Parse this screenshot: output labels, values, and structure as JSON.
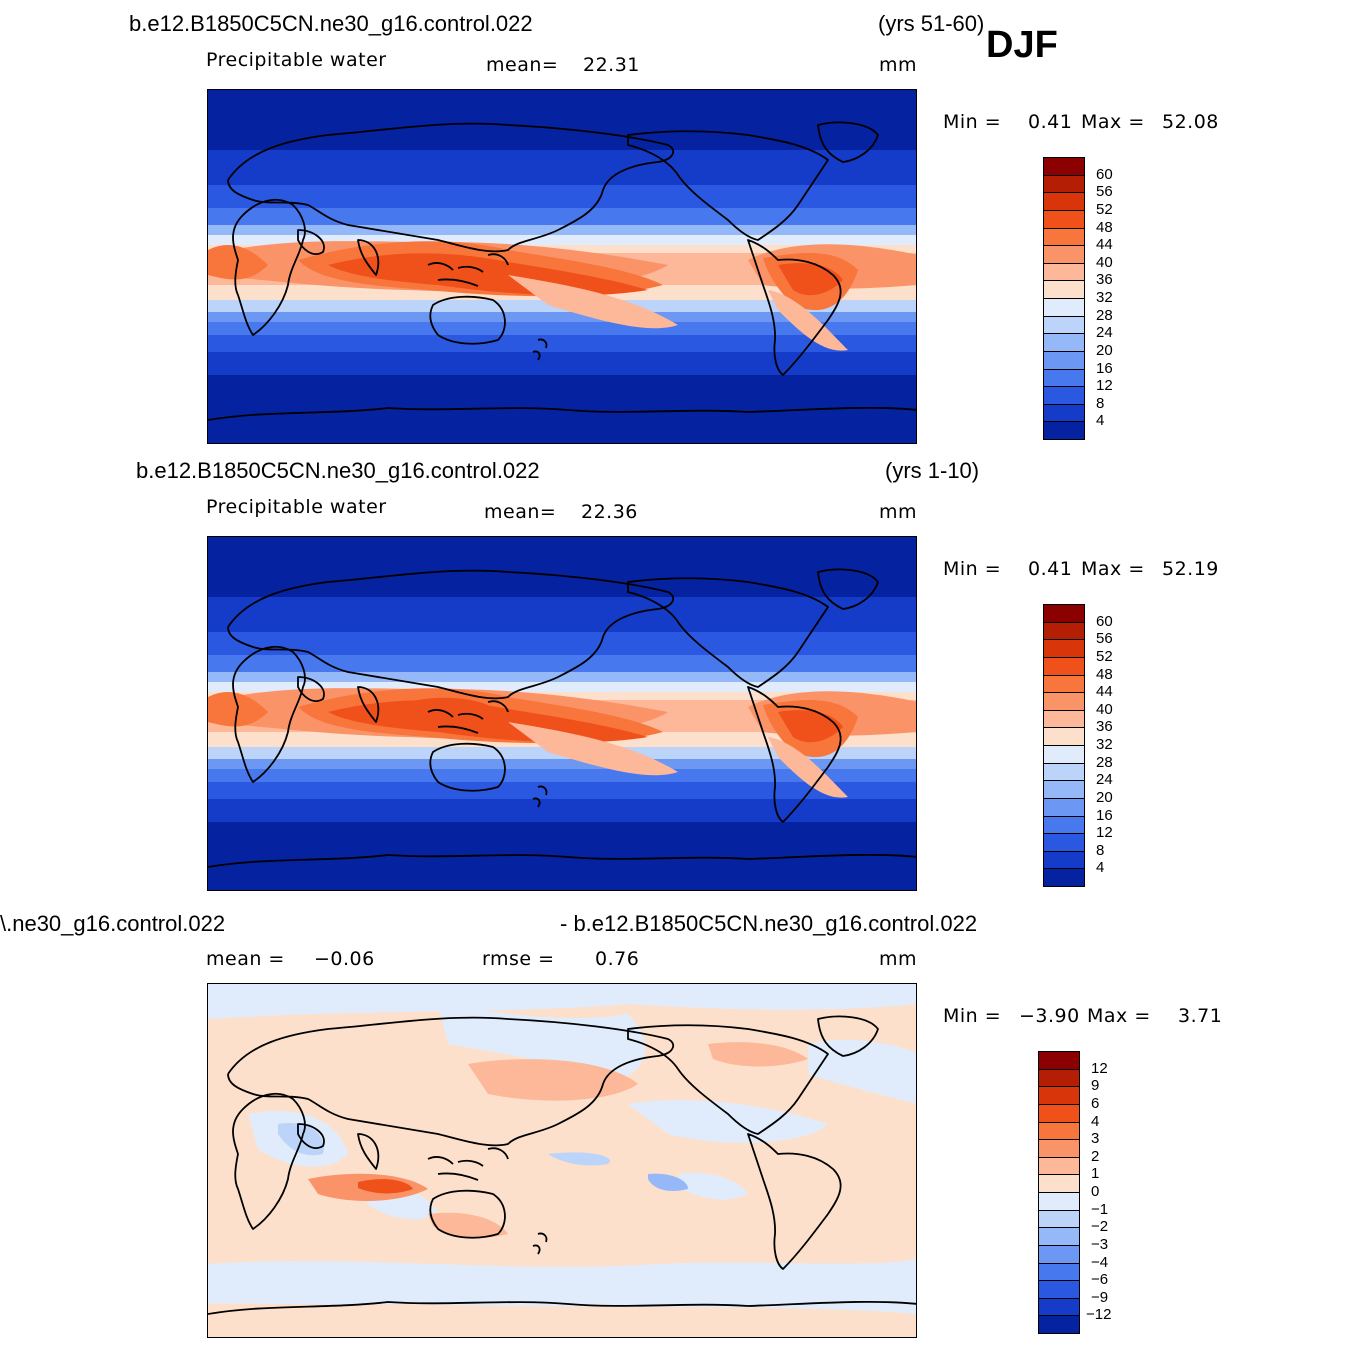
{
  "season": "DJF",
  "panels": [
    {
      "case": "b.e12.B1850C5CN.ne30_g16.control.022",
      "years": "(yrs 51-60)",
      "variable": "Precipitable water",
      "mean_label": "mean=",
      "mean_value": "22.31",
      "units": "mm",
      "min_label": "Min =",
      "min_value": "0.41",
      "max_label": "Max =",
      "max_value": "52.08"
    },
    {
      "case": "b.e12.B1850C5CN.ne30_g16.control.022",
      "years": "(yrs 1-10)",
      "variable": "Precipitable water",
      "mean_label": "mean=",
      "mean_value": "22.36",
      "units": "mm",
      "min_label": "Min =",
      "min_value": "0.41",
      "max_label": "Max =",
      "max_value": "52.19"
    },
    {
      "case_left": "\\.ne30_g16.control.022",
      "case_right": "- b.e12.B1850C5CN.ne30_g16.control.022",
      "mean_label": "mean =",
      "mean_value": "−0.06",
      "rmse_label": "rmse =",
      "rmse_value": "0.76",
      "units": "mm",
      "min_label": "Min =",
      "min_value": "−3.90",
      "max_label": "Max =",
      "max_value": "3.71"
    }
  ],
  "chart_data": [
    {
      "type": "heatmap",
      "map": "global lat-lon contour map, precipitable water",
      "colorbar_levels": [
        "60",
        "56",
        "52",
        "48",
        "44",
        "40",
        "36",
        "32",
        "28",
        "24",
        "20",
        "16",
        "12",
        "8",
        "4"
      ],
      "colorbar_colors": [
        "#8b0000",
        "#b41e05",
        "#d8350a",
        "#f0501a",
        "#f8753c",
        "#fa9468",
        "#fcb898",
        "#fde0cc",
        "#e0ecfc",
        "#bcd4fa",
        "#94b8f8",
        "#6c98f4",
        "#4878ee",
        "#2a58e0",
        "#143cc8",
        "#0522a0"
      ],
      "min": 0.41,
      "max": 52.08,
      "mean": 22.31
    },
    {
      "type": "heatmap",
      "map": "global lat-lon contour map, precipitable water",
      "colorbar_levels": [
        "60",
        "56",
        "52",
        "48",
        "44",
        "40",
        "36",
        "32",
        "28",
        "24",
        "20",
        "16",
        "12",
        "8",
        "4"
      ],
      "colorbar_colors": [
        "#8b0000",
        "#b41e05",
        "#d8350a",
        "#f0501a",
        "#f8753c",
        "#fa9468",
        "#fcb898",
        "#fde0cc",
        "#e0ecfc",
        "#bcd4fa",
        "#94b8f8",
        "#6c98f4",
        "#4878ee",
        "#2a58e0",
        "#143cc8",
        "#0522a0"
      ],
      "min": 0.41,
      "max": 52.19,
      "mean": 22.36
    },
    {
      "type": "heatmap",
      "map": "global lat-lon contour map, difference",
      "colorbar_levels": [
        "12",
        "9",
        "6",
        "4",
        "3",
        "2",
        "1",
        "0",
        "−1",
        "−2",
        "−3",
        "−4",
        "−6",
        "−9",
        "−12"
      ],
      "colorbar_colors": [
        "#8b0000",
        "#b41e05",
        "#d8350a",
        "#f0501a",
        "#f8753c",
        "#fa9468",
        "#fcb898",
        "#fde0cc",
        "#e0ecfc",
        "#bcd4fa",
        "#94b8f8",
        "#6c98f4",
        "#4878ee",
        "#2a58e0",
        "#143cc8",
        "#0522a0"
      ],
      "min": -3.9,
      "max": 3.71,
      "mean": -0.06,
      "rmse": 0.76
    }
  ]
}
